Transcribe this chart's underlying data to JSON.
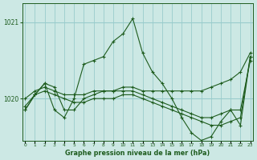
{
  "title": "Graphe pression niveau de la mer (hPa)",
  "background_color": "#cce8e4",
  "line_color": "#1e5c1e",
  "grid_color": "#99cccc",
  "ylim": [
    1019.45,
    1021.25
  ],
  "yticks": [
    1020,
    1021
  ],
  "xlim": [
    -0.3,
    23.3
  ],
  "xticks": [
    0,
    1,
    2,
    3,
    4,
    5,
    6,
    7,
    8,
    9,
    10,
    11,
    12,
    13,
    14,
    15,
    16,
    17,
    18,
    19,
    20,
    21,
    22,
    23
  ],
  "series": [
    {
      "x": [
        0,
        1,
        2,
        3,
        4,
        5,
        6,
        7,
        8,
        9,
        10,
        11,
        12,
        13,
        14,
        15,
        16,
        17,
        18,
        19,
        20,
        21,
        22,
        23
      ],
      "y": [
        1019.9,
        1020.05,
        1020.1,
        1020.05,
        1020.0,
        1019.95,
        1019.95,
        1020.0,
        1020.0,
        1020.0,
        1020.05,
        1020.05,
        1020.0,
        1019.95,
        1019.9,
        1019.85,
        1019.8,
        1019.75,
        1019.7,
        1019.65,
        1019.65,
        1019.7,
        1019.75,
        1020.55
      ]
    },
    {
      "x": [
        0,
        1,
        2,
        3,
        4,
        5,
        6,
        7,
        8,
        9,
        10,
        11,
        12,
        13,
        14,
        15,
        16,
        17,
        18,
        19,
        20,
        21,
        22,
        23
      ],
      "y": [
        1020.0,
        1020.1,
        1020.15,
        1020.1,
        1020.05,
        1020.05,
        1020.05,
        1020.1,
        1020.1,
        1020.1,
        1020.15,
        1020.15,
        1020.1,
        1020.1,
        1020.1,
        1020.1,
        1020.1,
        1020.1,
        1020.1,
        1020.15,
        1020.2,
        1020.25,
        1020.35,
        1020.6
      ]
    },
    {
      "x": [
        0,
        1,
        2,
        3,
        4,
        5,
        6,
        7,
        8,
        9,
        10,
        11,
        12,
        13,
        14,
        15,
        16,
        17,
        18,
        19,
        20,
        21,
        22,
        23
      ],
      "y": [
        1019.85,
        1020.05,
        1020.2,
        1020.15,
        1019.85,
        1019.85,
        1020.0,
        1020.05,
        1020.1,
        1020.1,
        1020.1,
        1020.1,
        1020.05,
        1020.0,
        1019.95,
        1019.9,
        1019.85,
        1019.8,
        1019.75,
        1019.75,
        1019.8,
        1019.85,
        1019.85,
        1020.5
      ]
    },
    {
      "x": [
        0,
        1,
        2,
        3,
        4,
        5,
        6,
        7,
        8,
        9,
        10,
        11,
        12,
        13,
        14,
        15,
        16,
        17,
        18,
        19,
        20,
        21,
        22,
        23
      ],
      "y": [
        1019.85,
        1020.05,
        1020.2,
        1019.85,
        1019.75,
        1020.0,
        1020.45,
        1020.5,
        1020.55,
        1020.75,
        1020.85,
        1021.05,
        1020.6,
        1020.35,
        1020.2,
        1020.0,
        1019.75,
        1019.55,
        1019.45,
        1019.5,
        1019.7,
        1019.85,
        1019.65,
        1020.55
      ]
    }
  ]
}
